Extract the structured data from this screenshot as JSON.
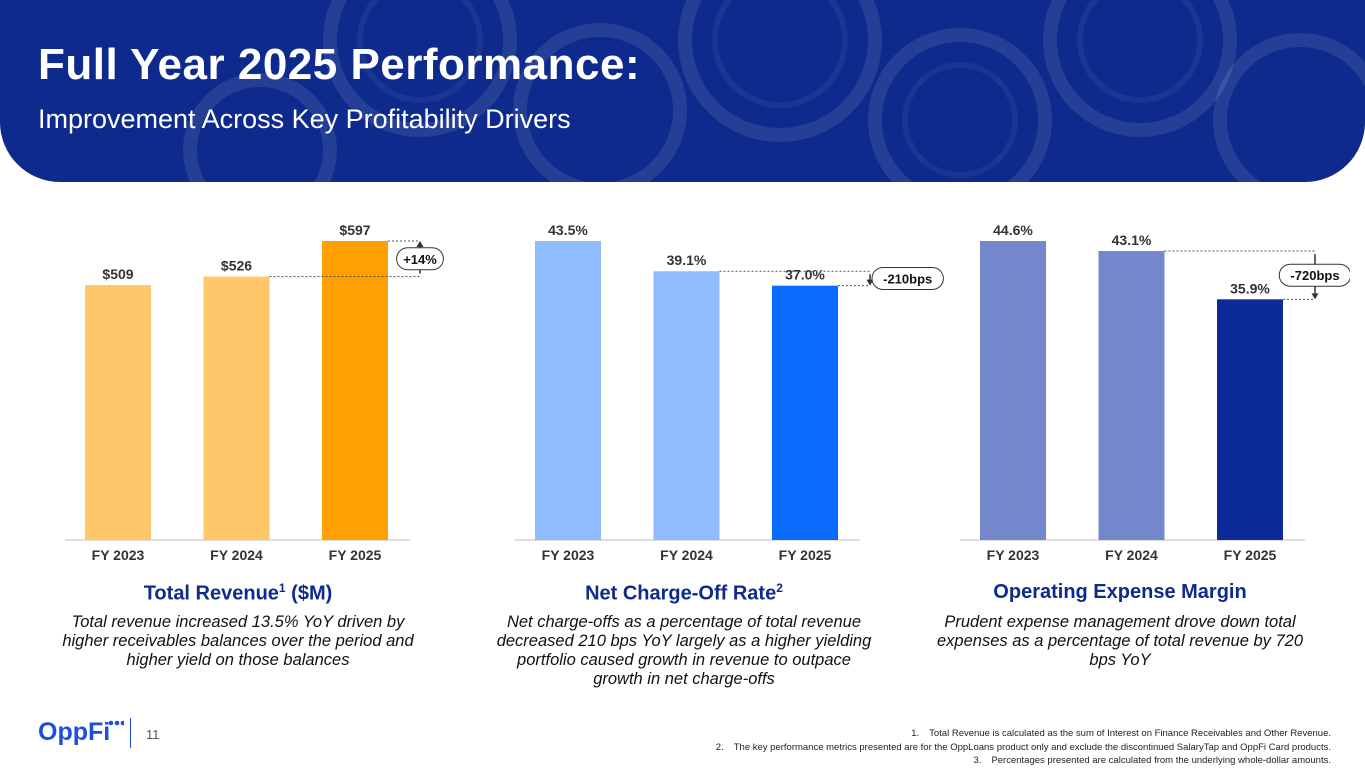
{
  "header": {
    "title": "Full Year 2025 Performance:",
    "subtitle": "Improvement Across Key Profitability Drivers"
  },
  "colors": {
    "header_bg": "#0d2a8c",
    "revenue_light": "#ffc76a",
    "revenue_dark": "#ffa000",
    "nco_light": "#8ebcff",
    "nco_dark": "#0a6cff",
    "opex_light": "#7486cc",
    "opex_dark": "#0d2a9a",
    "caption_title": "#0d2a8c"
  },
  "chart_data": [
    {
      "type": "bar",
      "categories": [
        "FY 2023",
        "FY 2024",
        "FY 2025"
      ],
      "values": [
        509,
        526,
        597
      ],
      "data_labels": [
        "$509",
        "$526",
        "$597"
      ],
      "ylim": [
        0,
        597
      ],
      "change_label": "+14%",
      "title": "Total Revenue",
      "title_sup": "1",
      "title_suffix": "($M)",
      "description": "Total revenue increased 13.5% YoY driven by higher receivables balances over the period and higher yield on those balances"
    },
    {
      "type": "bar",
      "categories": [
        "FY 2023",
        "FY 2024",
        "FY 2025"
      ],
      "values": [
        43.5,
        39.1,
        37.0
      ],
      "data_labels": [
        "43.5%",
        "39.1%",
        "37.0%"
      ],
      "ylim": [
        0,
        43.5
      ],
      "change_label": "-210bps",
      "title": "Net Charge-Off Rate",
      "title_sup": "2",
      "title_suffix": "",
      "description": "Net charge-offs as a percentage of total revenue decreased 210 bps YoY largely as a higher yielding portfolio caused growth in revenue to outpace growth in net charge-offs"
    },
    {
      "type": "bar",
      "categories": [
        "FY 2023",
        "FY 2024",
        "FY 2025"
      ],
      "values": [
        44.6,
        43.1,
        35.9
      ],
      "data_labels": [
        "44.6%",
        "43.1%",
        "35.9%"
      ],
      "ylim": [
        0,
        44.6
      ],
      "change_label": "-720bps",
      "title": "Operating Expense Margin",
      "title_sup": "",
      "title_suffix": "",
      "description": "Prudent expense management drove down total expenses as a percentage of total revenue by 720 bps YoY"
    }
  ],
  "footer": {
    "logo_text": "OppFi",
    "page_number": "11",
    "footnotes": [
      {
        "num": "1.",
        "text": "Total Revenue is calculated as the sum of Interest on Finance Receivables and Other Revenue."
      },
      {
        "num": "2.",
        "text": "The key performance metrics presented are for the OppLoans product only and exclude the discontinued SalaryTap and OppFi Card products."
      },
      {
        "num": "3.",
        "text": "Percentages presented are calculated from the underlying whole-dollar amounts."
      }
    ]
  }
}
